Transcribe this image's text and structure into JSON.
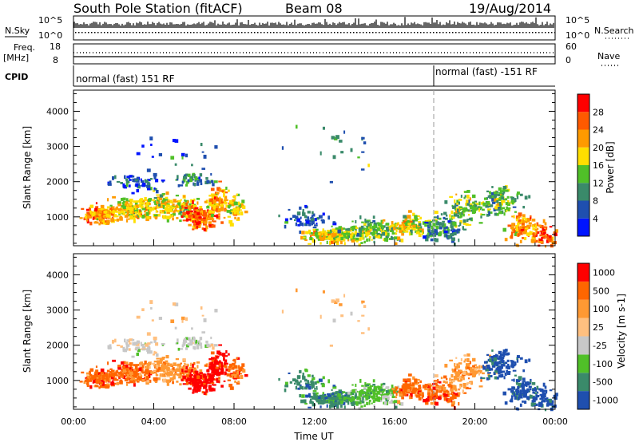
{
  "header": {
    "title": "South Pole Station (fitACF)",
    "beam": "Beam 08",
    "date": "19/Aug/2014"
  },
  "status_panels": {
    "nsky_label": "N.Sky",
    "nsky_ticks": [
      "10^5",
      "10^0"
    ],
    "nsearch_label": "N.Search",
    "nsearch_ticks": [
      "10^5",
      "10^0"
    ],
    "freq_label": "Freq.",
    "freq_unit": "[MHz]",
    "freq_ticks": [
      "18",
      "8"
    ],
    "nave_label": "Nave",
    "nave_ticks": [
      "60",
      "0"
    ],
    "cpid_label": "CPID",
    "cpid_segments": [
      {
        "start_hour": 0,
        "label": "normal (fast) 151 RF"
      },
      {
        "start_hour": 18,
        "label": "normal (fast) -151 RF"
      }
    ]
  },
  "colors": {
    "power": [
      "#0014ff",
      "#1f4faf",
      "#3a8a6a",
      "#50c028",
      "#ffdf00",
      "#ff9a00",
      "#ff5a00",
      "#ff0000"
    ],
    "velocity": [
      "#ff0000",
      "#ff6600",
      "#ff9933",
      "#ffc080",
      "#c8c8c8",
      "#50c028",
      "#3a8a6a",
      "#1f4faf"
    ]
  },
  "chart_data": [
    {
      "type": "heatmap",
      "title": "Power",
      "ylabel": "Slant Range [km]",
      "ylim": [
        180,
        4600
      ],
      "yticks": [
        "1000",
        "2000",
        "3000",
        "4000"
      ],
      "xlim_hours": [
        0,
        24
      ],
      "colorbar_label": "Power [dB]",
      "colorbar_ticks": [
        "4",
        "8",
        "12",
        "16",
        "20",
        "24",
        "28"
      ],
      "colorbar_range": [
        0,
        30
      ]
    },
    {
      "type": "heatmap",
      "title": "Velocity",
      "ylabel": "Slant Range [km]",
      "ylim": [
        180,
        4600
      ],
      "yticks": [
        "1000",
        "2000",
        "3000",
        "4000"
      ],
      "xlim_hours": [
        0,
        24
      ],
      "colorbar_label": "Velocity [m s-1]",
      "colorbar_ticks": [
        "1000",
        "500",
        "100",
        "25",
        "-25",
        "-100",
        "-500",
        "-1000"
      ]
    }
  ],
  "time_axis": {
    "ticks": [
      "00:00",
      "04:00",
      "08:00",
      "12:00",
      "16:00",
      "20:00",
      "00:00"
    ],
    "label": "Time UT"
  }
}
